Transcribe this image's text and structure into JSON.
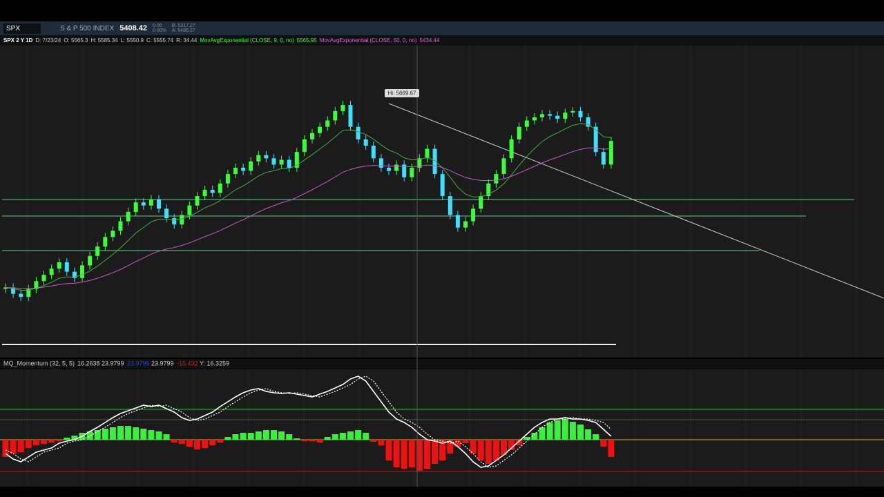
{
  "toolbar": {
    "symbol": "SPX",
    "description": "S & P 500 INDEX",
    "last": "5408.42",
    "change": "0.00",
    "change_pct": "0.00%",
    "bid": "B: 5317.27",
    "ask": "A: 5486.27"
  },
  "info": {
    "chart": "SPX 2 Y 1D",
    "date": "D: 7/23/24",
    "open": "O: 5565.3",
    "high": "H: 5585.34",
    "low": "L: 5550.9",
    "close": "C: 5555.74",
    "range": "R: 34.44",
    "ema_fast": "MovAvgExponential (CLOSE, 9, 0, no)",
    "ema_fast_value": "5565.95",
    "ema_slow": "MovAvgExponential (CLOSE, 50, 0, no)",
    "ema_slow_value": "5434.44"
  },
  "tooltip": "Hi: 5669.67",
  "momentum_info": {
    "name": "MQ_Momentum (32, 5, 5)",
    "v1": "16.2638",
    "v2": "23.9799",
    "v3": "23.9799",
    "v4": "-15.432",
    "y": "Y: 16.3259"
  },
  "chart_data": [
    {
      "type": "candlestick",
      "up_color": "#3cff3c",
      "down_color": "#3ee0ff",
      "ylim": [
        4907,
        5827
      ],
      "values": [
        5090,
        5070,
        5060,
        5085,
        5110,
        5130,
        5150,
        5170,
        5140,
        5120,
        5160,
        5190,
        5220,
        5250,
        5270,
        5300,
        5330,
        5360,
        5350,
        5370,
        5340,
        5310,
        5290,
        5320,
        5350,
        5380,
        5400,
        5390,
        5420,
        5450,
        5470,
        5460,
        5490,
        5510,
        5500,
        5480,
        5495,
        5470,
        5520,
        5560,
        5580,
        5600,
        5620,
        5650,
        5669,
        5600,
        5560,
        5540,
        5500,
        5470,
        5460,
        5480,
        5440,
        5470,
        5500,
        5530,
        5450,
        5380,
        5320,
        5280,
        5300,
        5340,
        5380,
        5420,
        5450,
        5500,
        5560,
        5600,
        5620,
        5630,
        5640,
        5635,
        5625,
        5645,
        5650,
        5630,
        5600,
        5520,
        5480,
        5555
      ]
    },
    {
      "type": "momentum",
      "up_color": "#39f03a",
      "down_color": "#ee1111",
      "ylim": [
        -50,
        100
      ],
      "values": [
        -25,
        -20,
        -18,
        -12,
        -8,
        -6,
        -4,
        -2,
        3,
        6,
        10,
        12,
        14,
        16,
        18,
        20,
        20,
        18,
        16,
        14,
        12,
        8,
        -4,
        -6,
        -10,
        -14,
        -12,
        -8,
        -4,
        4,
        8,
        10,
        10,
        12,
        14,
        14,
        12,
        8,
        2,
        -2,
        -2,
        -4,
        4,
        8,
        10,
        12,
        14,
        10,
        -3,
        -8,
        -30,
        -40,
        -42,
        -40,
        -45,
        -42,
        -35,
        -30,
        -20,
        -10,
        -5,
        -20,
        -30,
        -35,
        -30,
        -22,
        -15,
        -8,
        4,
        10,
        18,
        25,
        28,
        30,
        26,
        22,
        15,
        8,
        -10,
        -25
      ],
      "series": [
        {
          "color": "#ffffff",
          "values": [
            -20,
            -28,
            -32,
            -25,
            -18,
            -15,
            -12,
            -5,
            -2,
            0,
            5,
            12,
            18,
            25,
            32,
            38,
            42,
            46,
            50,
            48,
            50,
            45,
            40,
            32,
            28,
            30,
            35,
            40,
            48,
            55,
            62,
            68,
            72,
            74,
            70,
            68,
            67,
            68,
            66,
            64,
            62,
            66,
            70,
            75,
            80,
            88,
            92,
            85,
            70,
            55,
            40,
            30,
            25,
            18,
            8,
            0,
            -2,
            -5,
            -2,
            -10,
            -20,
            -32,
            -40,
            -38,
            -30,
            -22,
            -12,
            -2,
            8,
            18,
            25,
            30,
            30,
            32,
            30,
            30,
            28,
            25,
            15,
            5
          ]
        },
        {
          "color": "#ffffff",
          "values": [
            -15,
            -20,
            -28,
            -32,
            -25,
            -18,
            -15,
            -12,
            -5,
            -2,
            0,
            5,
            12,
            18,
            25,
            32,
            38,
            42,
            46,
            50,
            48,
            50,
            45,
            40,
            32,
            28,
            30,
            35,
            40,
            48,
            55,
            62,
            68,
            72,
            74,
            70,
            68,
            67,
            68,
            66,
            64,
            62,
            66,
            70,
            75,
            80,
            88,
            92,
            85,
            70,
            55,
            40,
            30,
            25,
            18,
            8,
            0,
            -2,
            -5,
            -2,
            -10,
            -20,
            -32,
            -40,
            -38,
            -30,
            -22,
            -12,
            -2,
            8,
            18,
            25,
            30,
            30,
            32,
            30,
            30,
            28,
            25,
            15
          ]
        }
      ]
    }
  ]
}
